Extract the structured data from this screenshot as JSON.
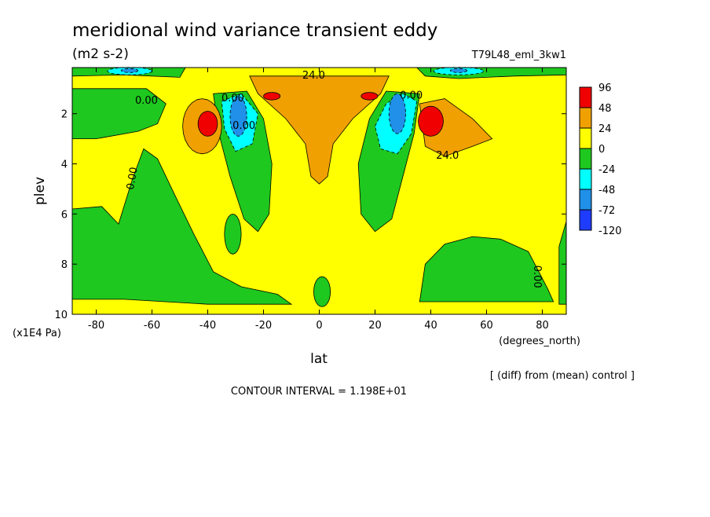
{
  "chart_data": {
    "type": "contour",
    "title": "meridional wind variance transient eddy",
    "subtitle": "(m2 s-2)",
    "experiment": "T79L48_eml_3kw1",
    "x_label": "lat",
    "x_unit": "(degrees_north)",
    "y_label": "plev",
    "y_unit": "(x1E4 Pa)",
    "note": "[ (diff) from (mean) control ]",
    "contour_interval": "CONTOUR INTERVAL = 1.198E+01",
    "xlim": [
      -88.6,
      88.6
    ],
    "xticks": [
      -80,
      -60,
      -40,
      -20,
      0,
      20,
      40,
      60,
      80
    ],
    "ylim": [
      10,
      0.16
    ],
    "yticks": [
      2,
      4,
      6,
      8,
      10
    ],
    "levels": [
      96,
      48,
      24,
      0,
      -24,
      -48,
      -72,
      -120
    ],
    "colors": [
      "#f00000",
      "#f0a000",
      "#ffff00",
      "#1ec81e",
      "#00ffff",
      "#2090e8",
      "#1e3cff"
    ],
    "contour_labels": [
      "24.0",
      "0.00",
      "0.00",
      "0.00",
      "0.00",
      "0.00",
      "24.0",
      "0.00"
    ]
  }
}
